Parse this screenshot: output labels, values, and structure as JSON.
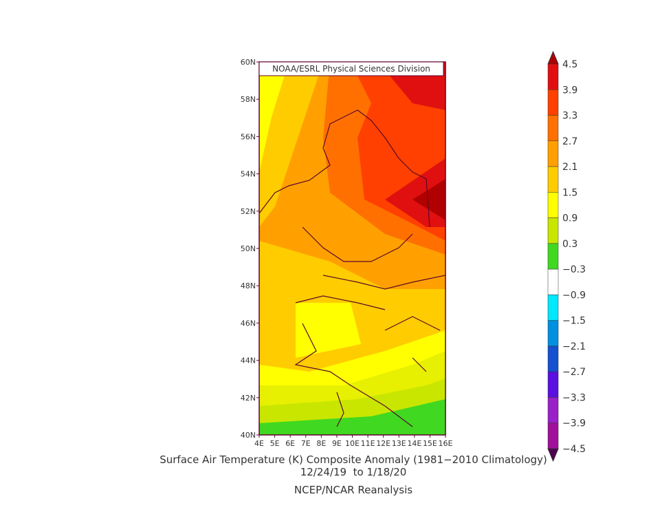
{
  "map": {
    "credit": "NOAA/ESRL Physical Sciences Division",
    "lat_labels": [
      "60N",
      "58N",
      "56N",
      "54N",
      "52N",
      "50N",
      "48N",
      "46N",
      "44N",
      "42N",
      "40N"
    ],
    "lon_labels": [
      "4E",
      "5E",
      "6E",
      "7E",
      "8E",
      "9E",
      "10E",
      "11E",
      "12E",
      "13E",
      "14E",
      "15E",
      "16E"
    ]
  },
  "colorbar": {
    "labels": [
      "4.5",
      "3.9",
      "3.3",
      "2.7",
      "2.1",
      "1.5",
      "0.9",
      "0.3",
      "−0.3",
      "−0.9",
      "−1.5",
      "−2.1",
      "−2.7",
      "−3.3",
      "−3.9",
      "−4.5"
    ],
    "colors": [
      "#e01010",
      "#ff4000",
      "#ff7000",
      "#ffa000",
      "#ffcc00",
      "#ffff00",
      "#c8e600",
      "#40d820",
      "#ffffff",
      "#00e8ff",
      "#0090e0",
      "#1450d0",
      "#5a10e0",
      "#9a20c8",
      "#a0109a"
    ],
    "top_color": "#b00000",
    "bottom_color": "#500050"
  },
  "caption": {
    "title": "Surface Air Temperature (K) Composite Anomaly (1981−2010 Climatology)",
    "dates": "12/24/19  to 1/18/20",
    "source": "NCEP/NCAR Reanalysis"
  }
}
